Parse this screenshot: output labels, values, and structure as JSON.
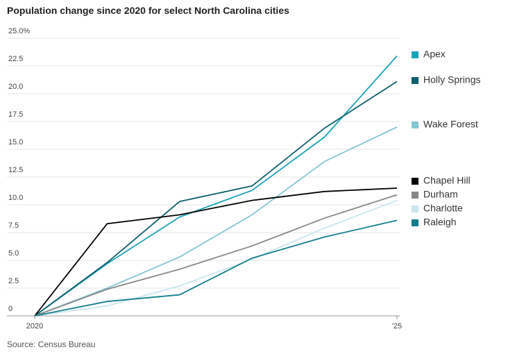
{
  "chart_data": {
    "type": "line",
    "title": "Population change since 2020 for select North Carolina cities",
    "source": "Source: Census Bureau",
    "categories": [
      "2020",
      null,
      null,
      null,
      null,
      "'25"
    ],
    "ylim": [
      0,
      25
    ],
    "yticks": [
      0,
      2.5,
      {
        "value": 5,
        "label": "5.0"
      },
      7.5,
      {
        "value": 10,
        "label": "10.0"
      },
      12.5,
      {
        "value": 15,
        "label": "15.0"
      },
      17.5,
      {
        "value": 20,
        "label": "20.0"
      },
      22.5,
      {
        "value": 25,
        "label": "25.0%"
      }
    ],
    "grid": true,
    "legend": "right",
    "series": [
      {
        "name": "Apex",
        "color": "#1aa3b8",
        "values": [
          0,
          4.7,
          8.9,
          11.3,
          16.1,
          23.4
        ]
      },
      {
        "name": "Holly Springs",
        "color": "#0d5f6b",
        "values": [
          0,
          4.8,
          10.3,
          11.7,
          16.9,
          21.1
        ]
      },
      {
        "name": "Wake Forest",
        "color": "#84c6d2",
        "values": [
          0,
          2.5,
          5.3,
          9.1,
          13.9,
          17.0
        ]
      },
      {
        "name": "Chapel Hill",
        "color": "#000000",
        "values": [
          0,
          8.3,
          9.1,
          10.4,
          11.2,
          11.5
        ]
      },
      {
        "name": "Durham",
        "color": "#888888",
        "values": [
          0,
          2.4,
          4.2,
          6.3,
          8.8,
          10.9
        ]
      },
      {
        "name": "Charlotte",
        "color": "#c9e6ed",
        "values": [
          0,
          0.9,
          2.7,
          5.1,
          7.9,
          10.4
        ]
      },
      {
        "name": "Raleigh",
        "color": "#127f8c",
        "values": [
          0,
          1.3,
          1.9,
          5.2,
          7.1,
          8.6
        ]
      }
    ]
  }
}
